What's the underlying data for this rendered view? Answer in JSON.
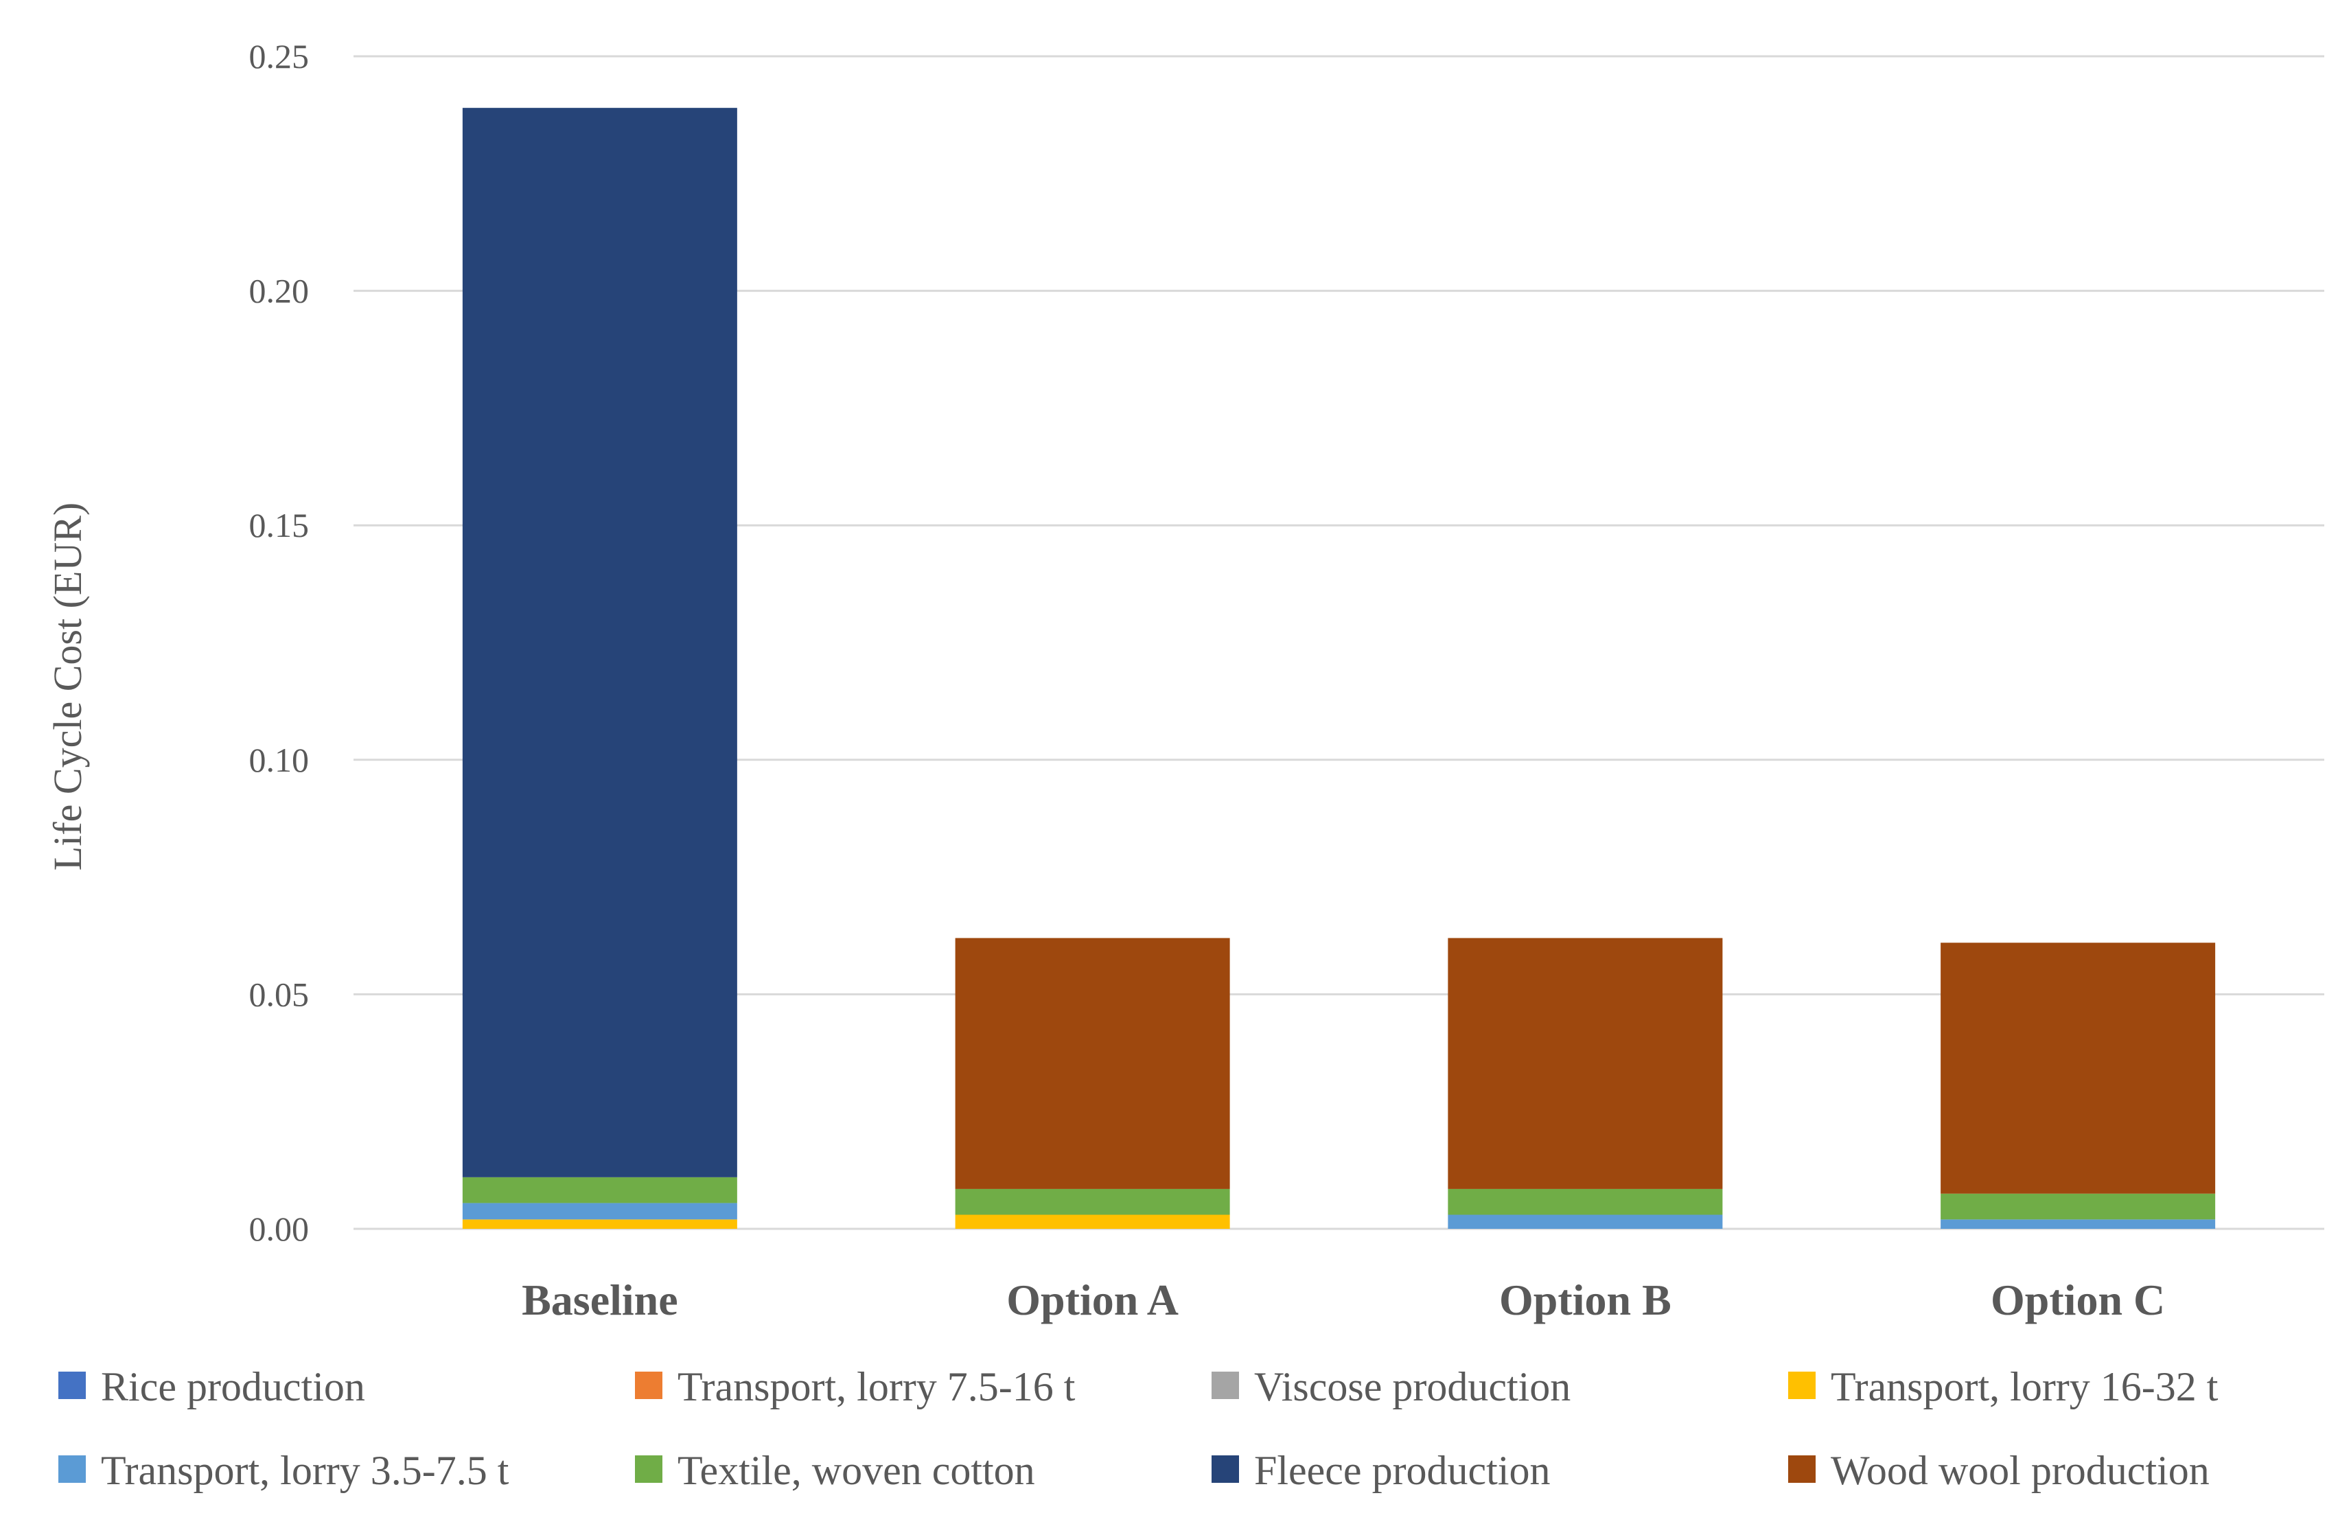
{
  "chart_data": {
    "type": "bar",
    "stacked": true,
    "categories": [
      "Baseline",
      "Option A",
      "Option B",
      "Option C"
    ],
    "ylabel": "Life Cycle Cost  (EUR)",
    "xlabel": "",
    "ylim": [
      0,
      0.25
    ],
    "yticks": [
      "0.00",
      "0.05",
      "0.10",
      "0.15",
      "0.20",
      "0.25"
    ],
    "grid": true,
    "legend_position": "bottom",
    "series": [
      {
        "name": "Rice production",
        "color": "#4472c4",
        "values": [
          0.0,
          0.0,
          0.0,
          0.0
        ]
      },
      {
        "name": "Transport, lorry 7.5-16 t",
        "color": "#ed7d31",
        "values": [
          0.0,
          0.0,
          0.0,
          0.0
        ]
      },
      {
        "name": "Viscose production",
        "color": "#a5a5a5",
        "values": [
          0.0,
          0.0,
          0.0,
          0.0
        ]
      },
      {
        "name": "Transport, lorry 16-32 t",
        "color": "#ffc000",
        "values": [
          0.002,
          0.003,
          0.0,
          0.0
        ]
      },
      {
        "name": "Transport, lorry 3.5-7.5 t",
        "color": "#5b9bd5",
        "values": [
          0.0035,
          0.0,
          0.003,
          0.002
        ]
      },
      {
        "name": "Textile, woven cotton",
        "color": "#70ad47",
        "values": [
          0.0055,
          0.0055,
          0.0055,
          0.0055
        ]
      },
      {
        "name": "Fleece production",
        "color": "#264478",
        "values": [
          0.228,
          0.0,
          0.0,
          0.0
        ]
      },
      {
        "name": "Wood wool production",
        "color": "#9e480e",
        "values": [
          0.0,
          0.0535,
          0.0535,
          0.0535
        ]
      }
    ]
  }
}
